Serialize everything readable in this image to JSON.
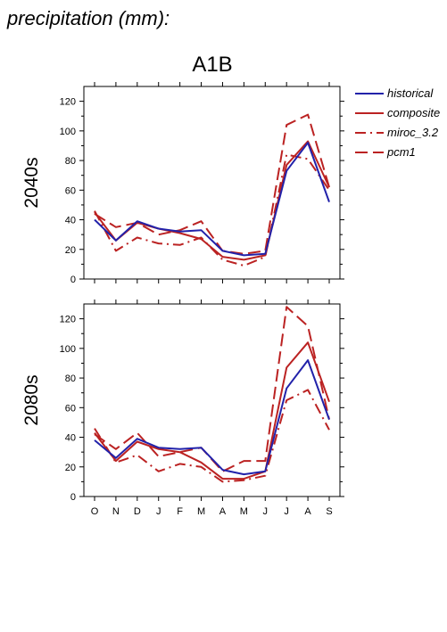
{
  "page_title": "precipitation (mm):",
  "chart_data": {
    "type": "line",
    "title": "A1B",
    "categories": [
      "O",
      "N",
      "D",
      "J",
      "F",
      "M",
      "A",
      "M",
      "J",
      "J",
      "A",
      "S"
    ],
    "ylim": [
      0,
      130
    ],
    "yticks": [
      0,
      20,
      40,
      60,
      80,
      100,
      120
    ],
    "grid": false,
    "legend_position": "top-right",
    "legend": [
      {
        "name": "historical",
        "color": "#2222aa",
        "dash": "solid"
      },
      {
        "name": "composite",
        "color": "#bb2222",
        "dash": "solid"
      },
      {
        "name": "miroc_3.2",
        "color": "#bb2222",
        "dash": "dashdot"
      },
      {
        "name": "pcm1",
        "color": "#bb2222",
        "dash": "dashed"
      }
    ],
    "panels": [
      {
        "label": "2040s",
        "series": [
          {
            "name": "historical",
            "values": [
              40,
              26,
              39,
              34,
              32,
              33,
              19,
              16,
              17,
              73,
              92,
              52
            ]
          },
          {
            "name": "composite",
            "values": [
              45,
              26,
              38,
              34,
              31,
              27,
              15,
              13,
              16,
              77,
              93,
              62
            ]
          },
          {
            "name": "miroc_3.2",
            "values": [
              46,
              19,
              28,
              24,
              23,
              28,
              13,
              9,
              15,
              84,
              81,
              60
            ]
          },
          {
            "name": "pcm1",
            "values": [
              44,
              35,
              38,
              30,
              33,
              39,
              19,
              17,
              19,
              104,
              111,
              62
            ]
          }
        ]
      },
      {
        "label": "2080s",
        "series": [
          {
            "name": "historical",
            "values": [
              38,
              26,
              39,
              33,
              32,
              33,
              18,
              15,
              17,
              73,
              92,
              52
            ]
          },
          {
            "name": "composite",
            "values": [
              43,
              24,
              37,
              32,
              30,
              23,
              12,
              12,
              17,
              87,
              104,
              64
            ]
          },
          {
            "name": "miroc_3.2",
            "values": [
              46,
              23,
              28,
              17,
              22,
              20,
              10,
              11,
              14,
              65,
              72,
              45
            ]
          },
          {
            "name": "pcm1",
            "values": [
              42,
              32,
              43,
              27,
              30,
              33,
              17,
              24,
              24,
              128,
              115,
              52
            ]
          }
        ]
      }
    ]
  }
}
